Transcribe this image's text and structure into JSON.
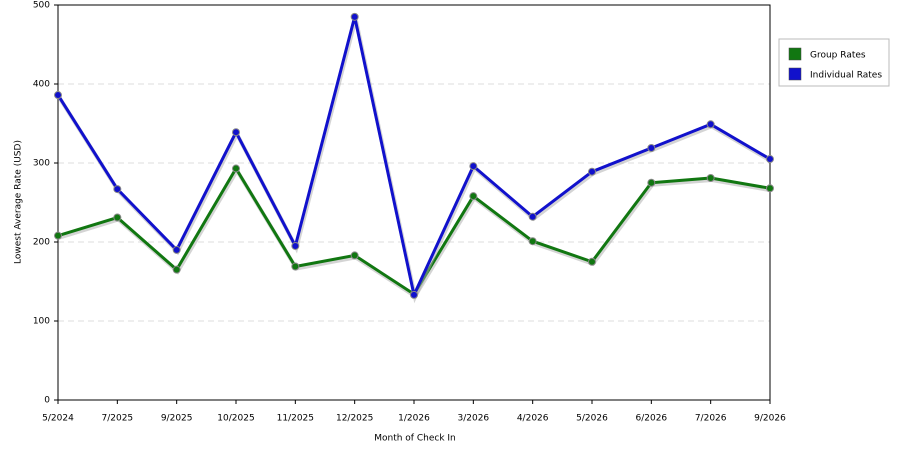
{
  "chart_data": {
    "type": "line",
    "x_label": "Month of Check In",
    "y_label": "Lowest Average Rate (USD)",
    "categories": [
      "5/2024",
      "7/2025",
      "9/2025",
      "10/2025",
      "11/2025",
      "12/2025",
      "1/2026",
      "3/2026",
      "4/2026",
      "5/2026",
      "6/2026",
      "7/2026",
      "9/2026"
    ],
    "series": [
      {
        "name": "Group Rates",
        "color": "#117711",
        "values": [
          208,
          231,
          165,
          293,
          169,
          183,
          134,
          258,
          201,
          175,
          275,
          281,
          268
        ]
      },
      {
        "name": "Individual Rates",
        "color": "#1111cc",
        "values": [
          386,
          267,
          190,
          339,
          195,
          485,
          133,
          296,
          232,
          289,
          319,
          349,
          305
        ]
      }
    ],
    "ylim": [
      0,
      500
    ],
    "yticks": [
      0,
      100,
      200,
      300,
      400,
      500
    ],
    "grid": true,
    "legend": "right"
  }
}
